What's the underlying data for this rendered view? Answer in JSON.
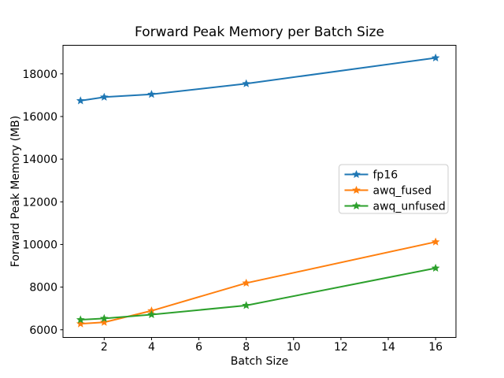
{
  "chart_data": {
    "type": "line",
    "title": "Forward Peak Memory per Batch Size",
    "xlabel": "Batch Size",
    "ylabel": "Forward Peak Memory (MB)",
    "x": [
      1,
      2,
      4,
      8,
      16
    ],
    "series": [
      {
        "name": "fp16",
        "color": "#1f77b4",
        "values": [
          16740,
          16910,
          17040,
          17540,
          18750
        ]
      },
      {
        "name": "awq_fused",
        "color": "#ff7f0e",
        "values": [
          6280,
          6350,
          6890,
          8190,
          10120
        ]
      },
      {
        "name": "awq_unfused",
        "color": "#2ca02c",
        "values": [
          6470,
          6530,
          6710,
          7140,
          8890
        ]
      }
    ],
    "xticks": [
      2,
      4,
      6,
      8,
      10,
      12,
      14,
      16
    ],
    "yticks": [
      6000,
      8000,
      10000,
      12000,
      14000,
      16000,
      18000
    ],
    "xlim": [
      0.26,
      16.86
    ],
    "ylim": [
      5640,
      19340
    ],
    "marker": "star",
    "grid": false,
    "legend_position": "center right",
    "background_color": "#ffffff",
    "spine_color": "#000000",
    "legend_border_color": "#cccccc"
  }
}
